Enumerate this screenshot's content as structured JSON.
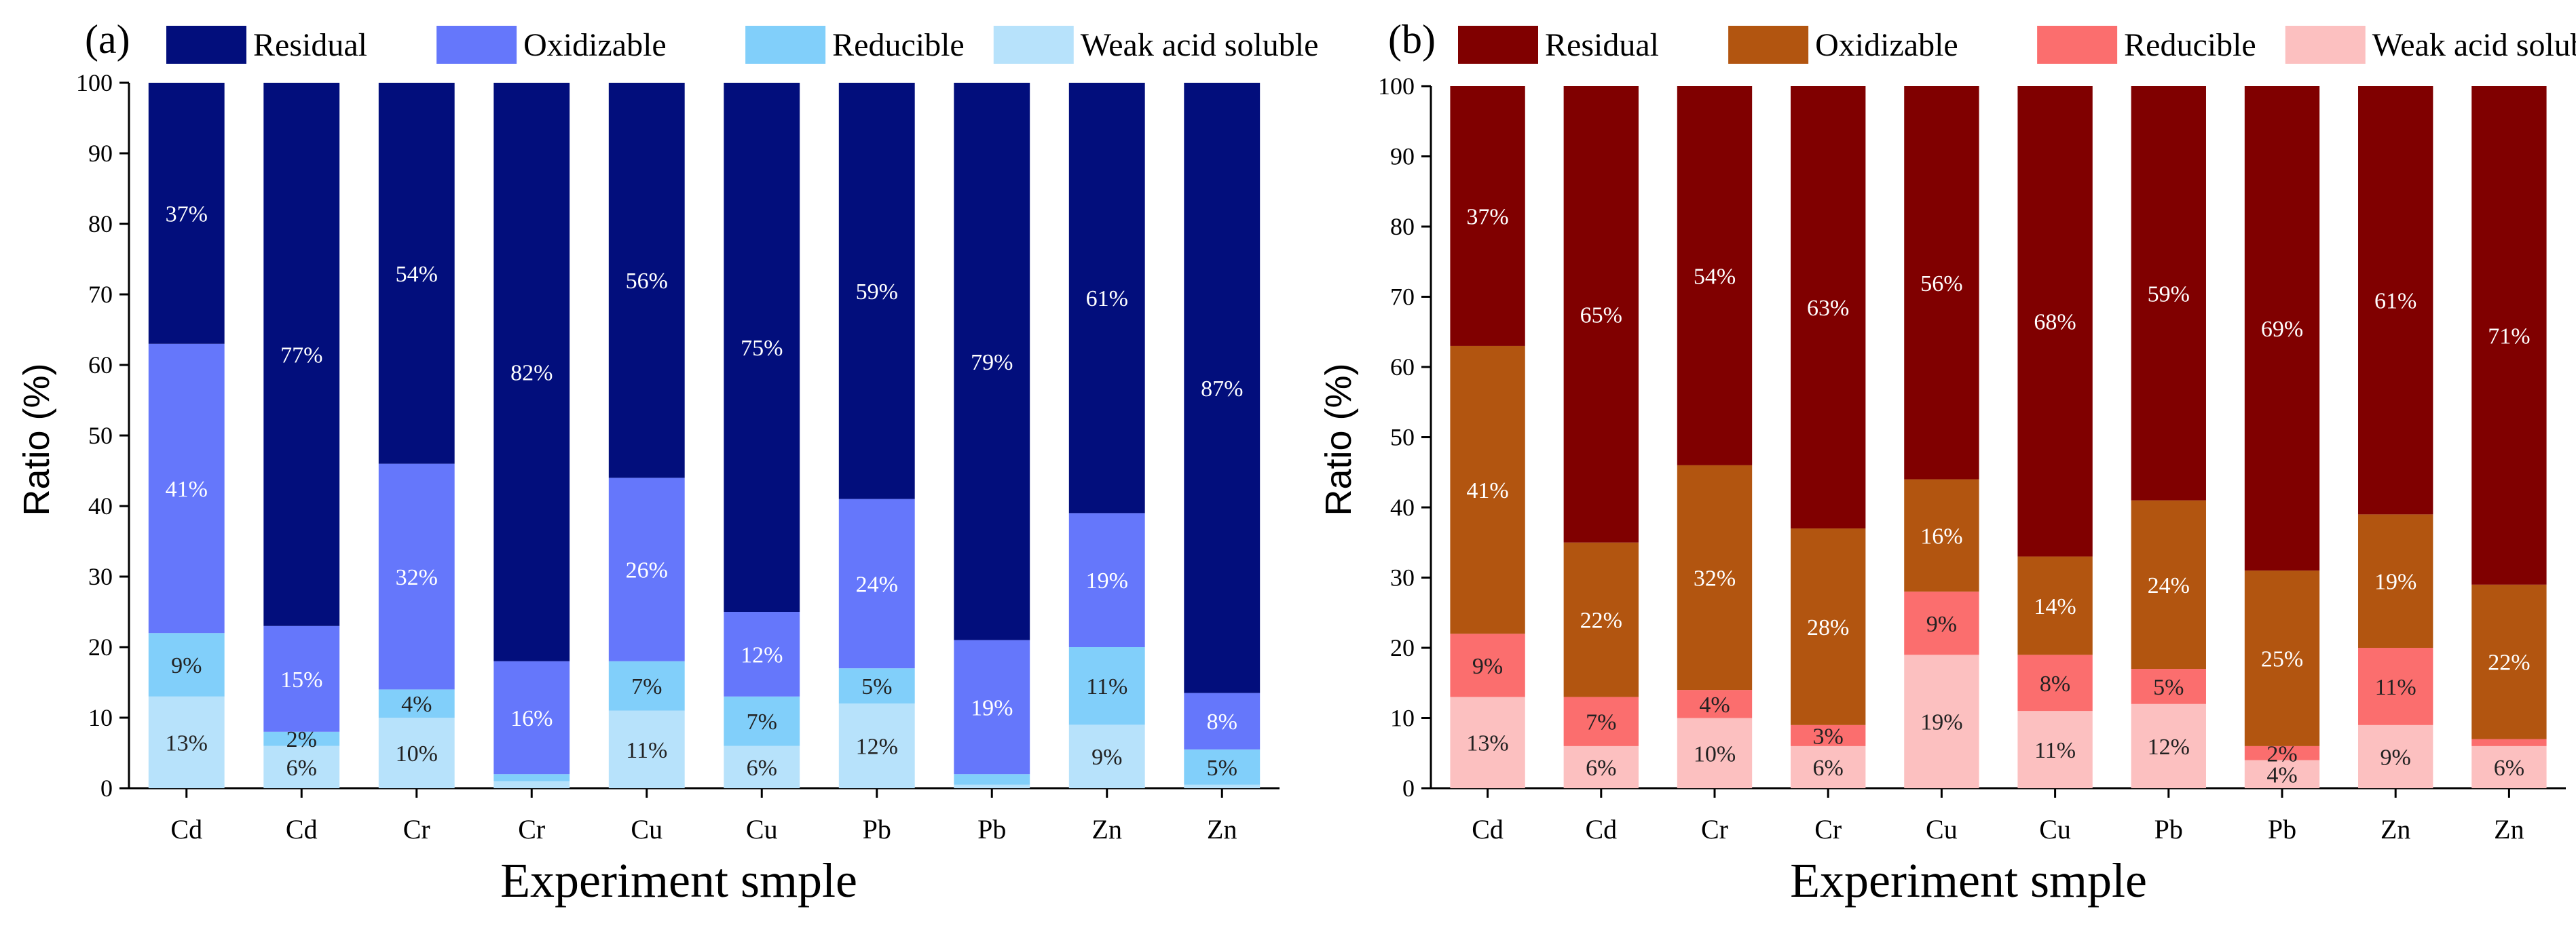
{
  "chart_data": [
    {
      "panel_label": "(a)",
      "type": "bar",
      "stacked": true,
      "percent": true,
      "xlabel": "Experiment smple",
      "ylabel": "Ratio (%)",
      "ylim": [
        0,
        100
      ],
      "yticks": [
        0,
        10,
        20,
        30,
        40,
        50,
        60,
        70,
        80,
        90,
        100
      ],
      "categories": [
        "Cd",
        "Cd",
        "Cr",
        "Cr",
        "Cu",
        "Cu",
        "Pb",
        "Pb",
        "Zn",
        "Zn"
      ],
      "legend_position": "top",
      "legend_order": [
        "Residual",
        "Oxidizable",
        "Reducible",
        "Weak acid soluble"
      ],
      "series": [
        {
          "name": "Weak acid soluble",
          "color": "#b7e2fb",
          "label_color": "#222222",
          "values": [
            13,
            6,
            10,
            1,
            11,
            6,
            12,
            0.5,
            9,
            0.5
          ],
          "labels": [
            "13%",
            "6%",
            "10%",
            "",
            "11%",
            "6%",
            "12%",
            "",
            "9%",
            ""
          ]
        },
        {
          "name": "Reducible",
          "color": "#81cffa",
          "label_color": "#222222",
          "values": [
            9,
            2,
            4,
            1,
            7,
            7,
            5,
            1.5,
            11,
            5
          ],
          "labels": [
            "9%",
            "2%",
            "4%",
            "",
            "7%",
            "7%",
            "5%",
            "",
            "11%",
            "5%"
          ]
        },
        {
          "name": "Oxidizable",
          "color": "#6577fb",
          "label_color": "#ffffff",
          "values": [
            41,
            15,
            32,
            16,
            26,
            12,
            24,
            19,
            19,
            8
          ],
          "labels": [
            "41%",
            "15%",
            "32%",
            "16%",
            "26%",
            "12%",
            "24%",
            "19%",
            "19%",
            "8%"
          ]
        },
        {
          "name": "Residual",
          "color": "#020e7c",
          "label_color": "#ffffff",
          "values": [
            37,
            77,
            54,
            82,
            56,
            75,
            59,
            79,
            61,
            87
          ],
          "labels": [
            "37%",
            "77%",
            "54%",
            "82%",
            "56%",
            "75%",
            "59%",
            "79%",
            "61%",
            "87%"
          ]
        }
      ]
    },
    {
      "panel_label": "(b)",
      "type": "bar",
      "stacked": true,
      "percent": true,
      "xlabel": "Experiment smple",
      "ylabel": "Ratio (%)",
      "ylim": [
        0,
        100
      ],
      "yticks": [
        0,
        10,
        20,
        30,
        40,
        50,
        60,
        70,
        80,
        90,
        100
      ],
      "categories": [
        "Cd",
        "Cd",
        "Cr",
        "Cr",
        "Cu",
        "Cu",
        "Pb",
        "Pb",
        "Zn",
        "Zn"
      ],
      "legend_position": "top",
      "legend_order": [
        "Residual",
        "Oxidizable",
        "Reducible",
        "Weak acid soluble"
      ],
      "series": [
        {
          "name": "Weak acid soluble",
          "color": "#fcc0c0",
          "label_color": "#222222",
          "values": [
            13,
            6,
            10,
            6,
            19,
            11,
            12,
            4,
            9,
            6
          ],
          "labels": [
            "13%",
            "6%",
            "10%",
            "6%",
            "19%",
            "11%",
            "12%",
            "4%",
            "9%",
            "6%"
          ]
        },
        {
          "name": "Reducible",
          "color": "#fb6e6e",
          "label_color": "#222222",
          "values": [
            9,
            7,
            4,
            3,
            9,
            8,
            5,
            2,
            11,
            1
          ],
          "labels": [
            "9%",
            "7%",
            "4%",
            "3%",
            "9%",
            "8%",
            "5%",
            "2%",
            "11%",
            ""
          ]
        },
        {
          "name": "Oxidizable",
          "color": "#b25510",
          "label_color": "#ffffff",
          "values": [
            41,
            22,
            32,
            28,
            16,
            14,
            24,
            25,
            19,
            22
          ],
          "labels": [
            "41%",
            "22%",
            "32%",
            "28%",
            "16%",
            "14%",
            "24%",
            "25%",
            "19%",
            "22%"
          ]
        },
        {
          "name": "Residual",
          "color": "#800000",
          "label_color": "#ffffff",
          "values": [
            37,
            65,
            54,
            63,
            56,
            68,
            59,
            69,
            61,
            71
          ],
          "labels": [
            "37%",
            "65%",
            "54%",
            "63%",
            "56%",
            "68%",
            "59%",
            "69%",
            "61%",
            "71%"
          ]
        }
      ]
    }
  ]
}
